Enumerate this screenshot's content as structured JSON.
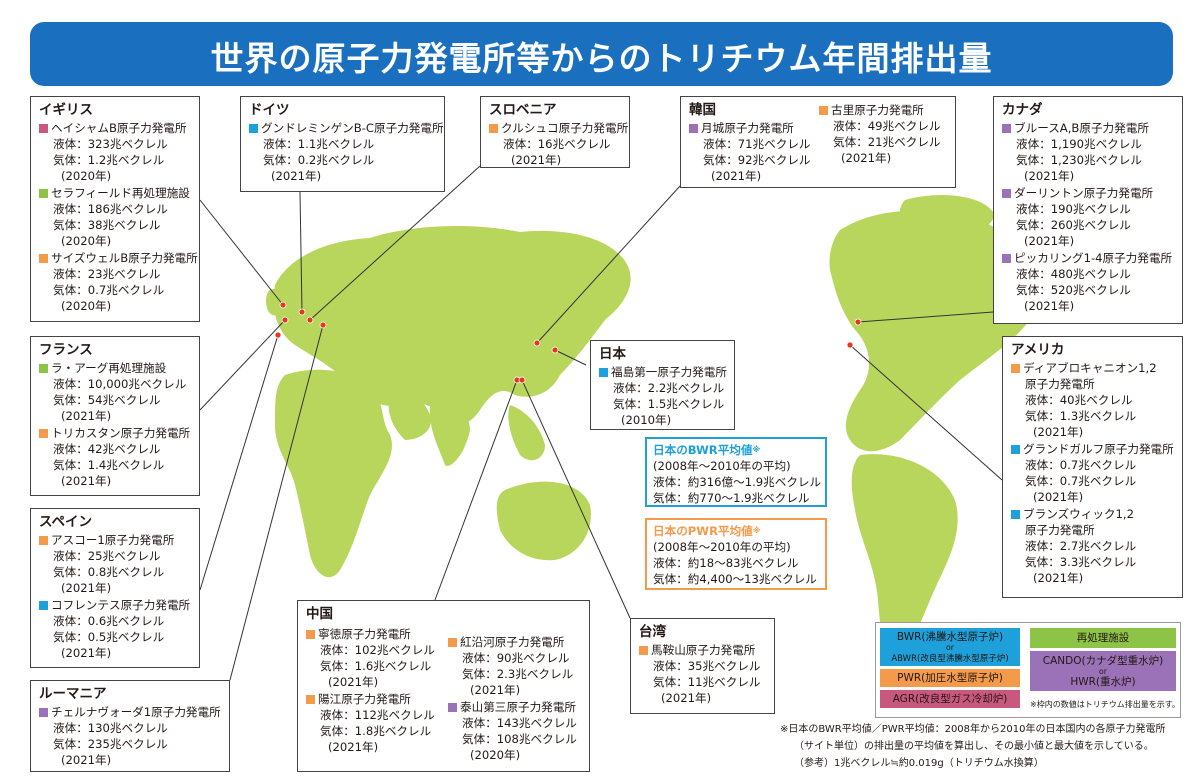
{
  "title": "世界の原子力発電所等からのトリチウム年間排出量",
  "colors": {
    "banner": "#1a6fbf",
    "land": "#b9d65c",
    "BWR": "#1ea0da",
    "PWR": "#f39a4b",
    "AGR": "#c8587d",
    "reprocessing": "#8dc448",
    "HWR": "#9b72b7"
  },
  "countries": {
    "uk": {
      "name": "イギリス",
      "plants": [
        {
          "name": "ヘイシャムB原子力発電所",
          "type": "AGR",
          "liquid": "液体：323兆ベクレル",
          "gas": "気体：1.2兆ベクレル",
          "year": "(2020年)"
        },
        {
          "name": "セラフィールド再処理施設",
          "type": "reprocessing",
          "liquid": "液体：186兆ベクレル",
          "gas": "気体：38兆ベクレル",
          "year": "(2020年)"
        },
        {
          "name": "サイズウェルB原子力発電所",
          "type": "PWR",
          "liquid": "液体：23兆ベクレル",
          "gas": "気体：0.7兆ベクレル",
          "year": "(2020年)"
        }
      ]
    },
    "germany": {
      "name": "ドイツ",
      "plants": [
        {
          "name": "グンドレミンゲンB-C原子力発電所",
          "type": "BWR",
          "liquid": "液体：1.1兆ベクレル",
          "gas": "気体：0.2兆ベクレル",
          "year": "(2021年)"
        }
      ]
    },
    "slovenia": {
      "name": "スロベニア",
      "plants": [
        {
          "name": "クルシュコ原子力発電所",
          "type": "PWR",
          "liquid": "液体：16兆ベクレル",
          "year": "(2021年)"
        }
      ]
    },
    "korea": {
      "name": "韓国",
      "plants": [
        {
          "name": "月城原子力発電所",
          "type": "HWR",
          "liquid": "液体：71兆ベクレル",
          "gas": "気体：92兆ベクレル",
          "year": "(2021年)"
        },
        {
          "name": "古里原子力発電所",
          "type": "PWR",
          "liquid": "液体：49兆ベクレル",
          "gas": "気体：21兆ベクレル",
          "year": "(2021年)"
        }
      ]
    },
    "canada": {
      "name": "カナダ",
      "plants": [
        {
          "name": "ブルースA,B原子力発電所",
          "type": "HWR",
          "liquid": "液体：1,190兆ベクレル",
          "gas": "気体：1,230兆ベクレル",
          "year": "(2021年)"
        },
        {
          "name": "ダーリントン原子力発電所",
          "type": "HWR",
          "liquid": "液体：190兆ベクレル",
          "gas": "気体：260兆ベクレル",
          "year": "(2021年)"
        },
        {
          "name": "ピッカリング1-4原子力発電所",
          "type": "HWR",
          "liquid": "液体：480兆ベクレル",
          "gas": "気体：520兆ベクレル",
          "year": "(2021年)"
        }
      ]
    },
    "france": {
      "name": "フランス",
      "plants": [
        {
          "name": "ラ・アーグ再処理施設",
          "type": "reprocessing",
          "liquid": "液体：10,000兆ベクレル",
          "gas": "気体：54兆ベクレル",
          "year": "(2021年)"
        },
        {
          "name": "トリカスタン原子力発電所",
          "type": "PWR",
          "liquid": "液体：42兆ベクレル",
          "gas": "気体：1.4兆ベクレル",
          "year": "(2021年)"
        }
      ]
    },
    "japan": {
      "name": "日本",
      "plants": [
        {
          "name": "福島第一原子力発電所",
          "type": "BWR",
          "liquid": "液体：2.2兆ベクレル",
          "gas": "気体：1.5兆ベクレル",
          "year": "(2010年)"
        }
      ]
    },
    "usa": {
      "name": "アメリカ",
      "plants": [
        {
          "name": "ディアブロキャニオン1,2",
          "name2": "原子力発電所",
          "type": "PWR",
          "liquid": "液体：40兆ベクレル",
          "gas": "気体：1.3兆ベクレル",
          "year": "(2021年)"
        },
        {
          "name": "グランドガルフ原子力発電所",
          "type": "BWR",
          "liquid": "液体：0.7兆ベクレル",
          "gas": "気体：0.7兆ベクレル",
          "year": "(2021年)"
        },
        {
          "name": "ブランズウィック1,2",
          "name2": "原子力発電所",
          "type": "BWR",
          "liquid": "液体：2.7兆ベクレル",
          "gas": "気体：3.3兆ベクレル",
          "year": "(2021年)"
        }
      ]
    },
    "spain": {
      "name": "スペイン",
      "plants": [
        {
          "name": "アスコー1原子力発電所",
          "type": "PWR",
          "liquid": "液体：25兆ベクレル",
          "gas": "気体：0.8兆ベクレル",
          "year": "(2021年)"
        },
        {
          "name": "コフレンテス原子力発電所",
          "type": "BWR",
          "liquid": "液体：0.6兆ベクレル",
          "gas": "気体：0.5兆ベクレル",
          "year": "(2021年)"
        }
      ]
    },
    "romania": {
      "name": "ルーマニア",
      "plants": [
        {
          "name": "チェルナヴォーダ1原子力発電所",
          "type": "HWR",
          "liquid": "液体：130兆ベクレル",
          "gas": "気体：235兆ベクレル",
          "year": "(2021年)"
        }
      ]
    },
    "china": {
      "name": "中国",
      "plants": [
        {
          "name": "寧徳原子力発電所",
          "type": "PWR",
          "liquid": "液体：102兆ベクレル",
          "gas": "気体：1.6兆ベクレル",
          "year": "(2021年)"
        },
        {
          "name": "紅沿河原子力発電所",
          "type": "PWR",
          "liquid": "液体：90兆ベクレル",
          "gas": "気体：2.3兆ベクレル",
          "year": "(2021年)"
        },
        {
          "name": "陽江原子力発電所",
          "type": "PWR",
          "liquid": "液体：112兆ベクレル",
          "gas": "気体：1.8兆ベクレル",
          "year": "(2021年)"
        },
        {
          "name": "泰山第三原子力発電所",
          "type": "HWR",
          "liquid": "液体：143兆ベクレル",
          "gas": "気体：108兆ベクレル",
          "year": "(2020年)"
        }
      ]
    },
    "taiwan": {
      "name": "台湾",
      "plants": [
        {
          "name": "馬鞍山原子力発電所",
          "type": "PWR",
          "liquid": "液体：35兆ベクレル",
          "gas": "気体：11兆ベクレル",
          "year": "(2021年)"
        }
      ]
    }
  },
  "bwr_avg": {
    "title": "日本のBWR平均値",
    "mark": "※",
    "period": "(2008年～2010年の平均)",
    "liquid": "液体：約316億～1.9兆ベクレル",
    "gas": "気体：約770～1.9兆ベクレル"
  },
  "pwr_avg": {
    "title": "日本のPWR平均値",
    "mark": "※",
    "period": "(2008年～2010年の平均)",
    "liquid": "液体：約18～83兆ベクレル",
    "gas": "気体：約4,400～13兆ベクレル"
  },
  "legend": {
    "bwr": "BWR(沸騰水型原子炉)",
    "or": "or",
    "abwr": "ABWR(改良型沸騰水型原子炉)",
    "pwr": "PWR(加圧水型原子炉)",
    "agr": "AGR(改良型ガス冷却炉)",
    "reprocessing": "再処理施設",
    "cando": "CANDO(カナダ型重水炉)",
    "hwr": "HWR(重水炉)",
    "note": "※枠内の数値はトリチウム排出量を示す。"
  },
  "footnote": {
    "line1": "※日本のBWR平均値／PWR平均値：2008年から2010年の日本国内の各原子力発電所",
    "line2": "（サイト単位）の排出量の平均値を算出し、その最小値と最大値を示している。",
    "line3": "（参考）1兆ベクレル≒約0.019g（トリチウム水換算）"
  }
}
